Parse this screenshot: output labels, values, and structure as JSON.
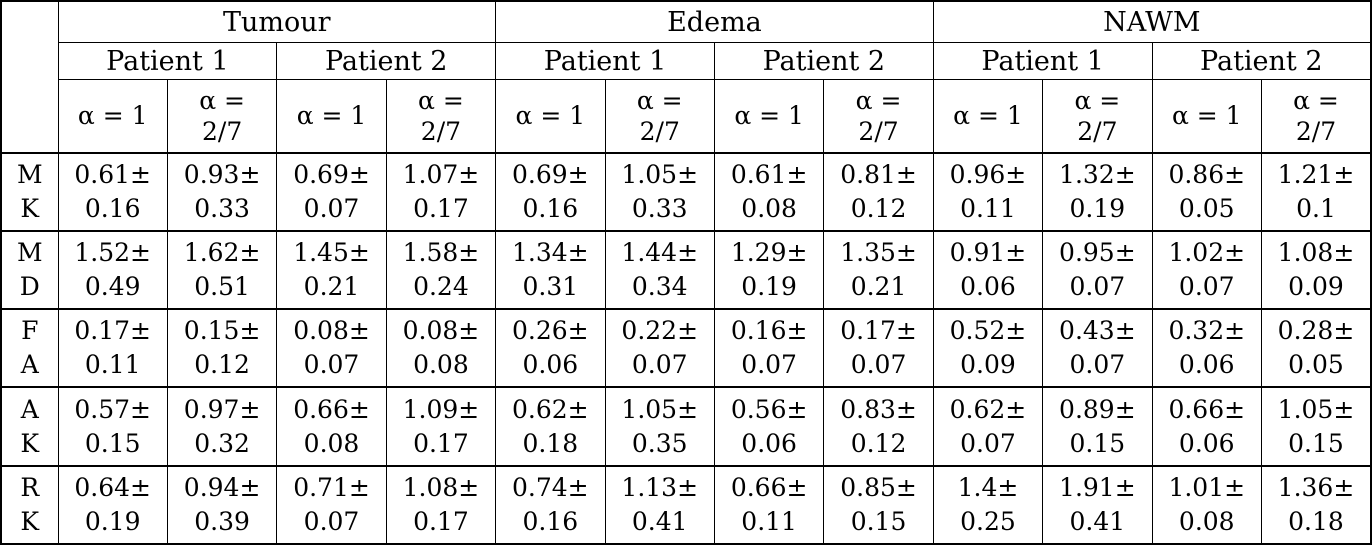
{
  "table": {
    "corner": "",
    "regions": [
      "Tumour",
      "Edema",
      "NAWM"
    ],
    "patients": [
      "Patient 1",
      "Patient 2"
    ],
    "alphas": [
      "α = 1",
      "α =\n2/7"
    ],
    "metric_rows": [
      {
        "metric": "M\nK",
        "cells": [
          "0.61±\n0.16",
          "0.93±\n0.33",
          "0.69±\n0.07",
          "1.07±\n0.17",
          "0.69±\n0.16",
          "1.05±\n0.33",
          "0.61±\n0.08",
          "0.81±\n0.12",
          "0.96±\n0.11",
          "1.32±\n0.19",
          "0.86±\n0.05",
          "1.21±\n0.1"
        ]
      },
      {
        "metric": "M\nD",
        "cells": [
          "1.52±\n0.49",
          "1.62±\n0.51",
          "1.45±\n0.21",
          "1.58±\n0.24",
          "1.34±\n0.31",
          "1.44±\n0.34",
          "1.29±\n0.19",
          "1.35±\n0.21",
          "0.91±\n0.06",
          "0.95±\n0.07",
          "1.02±\n0.07",
          "1.08±\n0.09"
        ]
      },
      {
        "metric": "F\nA",
        "cells": [
          "0.17±\n0.11",
          "0.15±\n0.12",
          "0.08±\n0.07",
          "0.08±\n0.08",
          "0.26±\n0.06",
          "0.22±\n0.07",
          "0.16±\n0.07",
          "0.17±\n0.07",
          "0.52±\n0.09",
          "0.43±\n0.07",
          "0.32±\n0.06",
          "0.28±\n0.05"
        ]
      },
      {
        "metric": "A\nK",
        "cells": [
          "0.57±\n0.15",
          "0.97±\n0.32",
          "0.66±\n0.08",
          "1.09±\n0.17",
          "0.62±\n0.18",
          "1.05±\n0.35",
          "0.56±\n0.06",
          "0.83±\n0.12",
          "0.62±\n0.07",
          "0.89±\n0.15",
          "0.66±\n0.06",
          "1.05±\n0.15"
        ]
      },
      {
        "metric": "R\nK",
        "cells": [
          "0.64±\n0.19",
          "0.94±\n0.39",
          "0.71±\n0.07",
          "1.08±\n0.17",
          "0.74±\n0.16",
          "1.13±\n0.41",
          "0.66±\n0.11",
          "0.85±\n0.15",
          "1.4±\n0.25",
          "1.91±\n0.41",
          "1.01±\n0.08",
          "1.36±\n0.18"
        ]
      }
    ]
  }
}
